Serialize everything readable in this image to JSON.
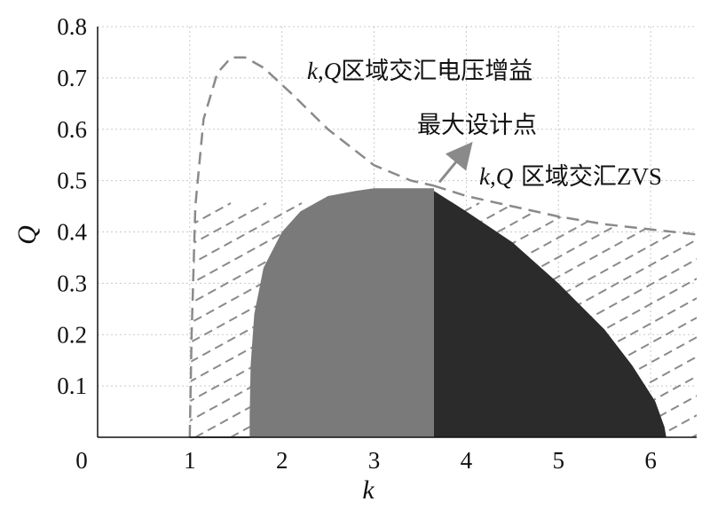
{
  "chart_data": {
    "type": "area",
    "xlabel": "k",
    "ylabel": "Q",
    "xlim": [
      0,
      6.5
    ],
    "ylim": [
      0,
      0.8
    ],
    "x_ticks": [
      "0",
      "1",
      "2",
      "3",
      "4",
      "5",
      "6"
    ],
    "y_ticks": [
      "0.1",
      "0.2",
      "0.3",
      "0.4",
      "0.5",
      "0.6",
      "0.7",
      "0.8"
    ],
    "grid": true,
    "series": [
      {
        "name": "k,Q区域交汇电压增益",
        "style": "dashed-hatched",
        "points": [
          [
            1.0,
            0.0
          ],
          [
            1.02,
            0.2
          ],
          [
            1.06,
            0.45
          ],
          [
            1.15,
            0.62
          ],
          [
            1.3,
            0.71
          ],
          [
            1.45,
            0.74
          ],
          [
            1.6,
            0.74
          ],
          [
            1.8,
            0.72
          ],
          [
            2.1,
            0.67
          ],
          [
            2.5,
            0.6
          ],
          [
            3.0,
            0.53
          ],
          [
            3.4,
            0.5
          ],
          [
            3.65,
            0.49
          ]
        ]
      },
      {
        "name": "k,Q 区域交汇ZVS",
        "style": "dashed-hatched",
        "points": [
          [
            3.65,
            0.49
          ],
          [
            4.0,
            0.47
          ],
          [
            4.5,
            0.45
          ],
          [
            5.0,
            0.43
          ],
          [
            5.5,
            0.415
          ],
          [
            6.0,
            0.405
          ],
          [
            6.5,
            0.395
          ]
        ]
      },
      {
        "name": "",
        "style": "filled",
        "color": "#7a7a7a",
        "points": [
          [
            1.65,
            0.0
          ],
          [
            1.65,
            0.04
          ],
          [
            1.66,
            0.14
          ],
          [
            1.7,
            0.24
          ],
          [
            1.8,
            0.33
          ],
          [
            2.0,
            0.4
          ],
          [
            2.2,
            0.44
          ],
          [
            2.5,
            0.47
          ],
          [
            2.8,
            0.48
          ],
          [
            3.0,
            0.485
          ],
          [
            3.65,
            0.485
          ],
          [
            3.65,
            0.0
          ]
        ]
      },
      {
        "name": "",
        "style": "filled",
        "color": "#2b2b2b",
        "points": [
          [
            3.65,
            0.0
          ],
          [
            3.65,
            0.48
          ],
          [
            4.0,
            0.44
          ],
          [
            4.5,
            0.38
          ],
          [
            5.0,
            0.3
          ],
          [
            5.5,
            0.21
          ],
          [
            5.8,
            0.14
          ],
          [
            6.05,
            0.07
          ],
          [
            6.15,
            0.02
          ],
          [
            6.17,
            0.0
          ]
        ]
      }
    ],
    "baseline_segment": [
      [
        1.0,
        0.0
      ],
      [
        1.65,
        0.0
      ]
    ],
    "annotations": [
      {
        "text": "最大设计点",
        "point": [
          3.65,
          0.49
        ]
      }
    ]
  },
  "labels": {
    "gain_region_k": "k",
    "gain_region_sep": ",",
    "gain_region_q": "Q",
    "gain_region_text": "区域交汇电压增益",
    "max_point": "最大设计点",
    "zvs_region_k": "k",
    "zvs_region_sep": ",",
    "zvs_region_q": "Q",
    "zvs_region_text": " 区域交汇",
    "zvs_region_suffix": "ZVS"
  },
  "colors": {
    "gain_fill": "#7a7a7a",
    "zvs_fill": "#2b2b2b",
    "boundary": "#8a8a8a",
    "arrow": "#8a8a8a"
  }
}
